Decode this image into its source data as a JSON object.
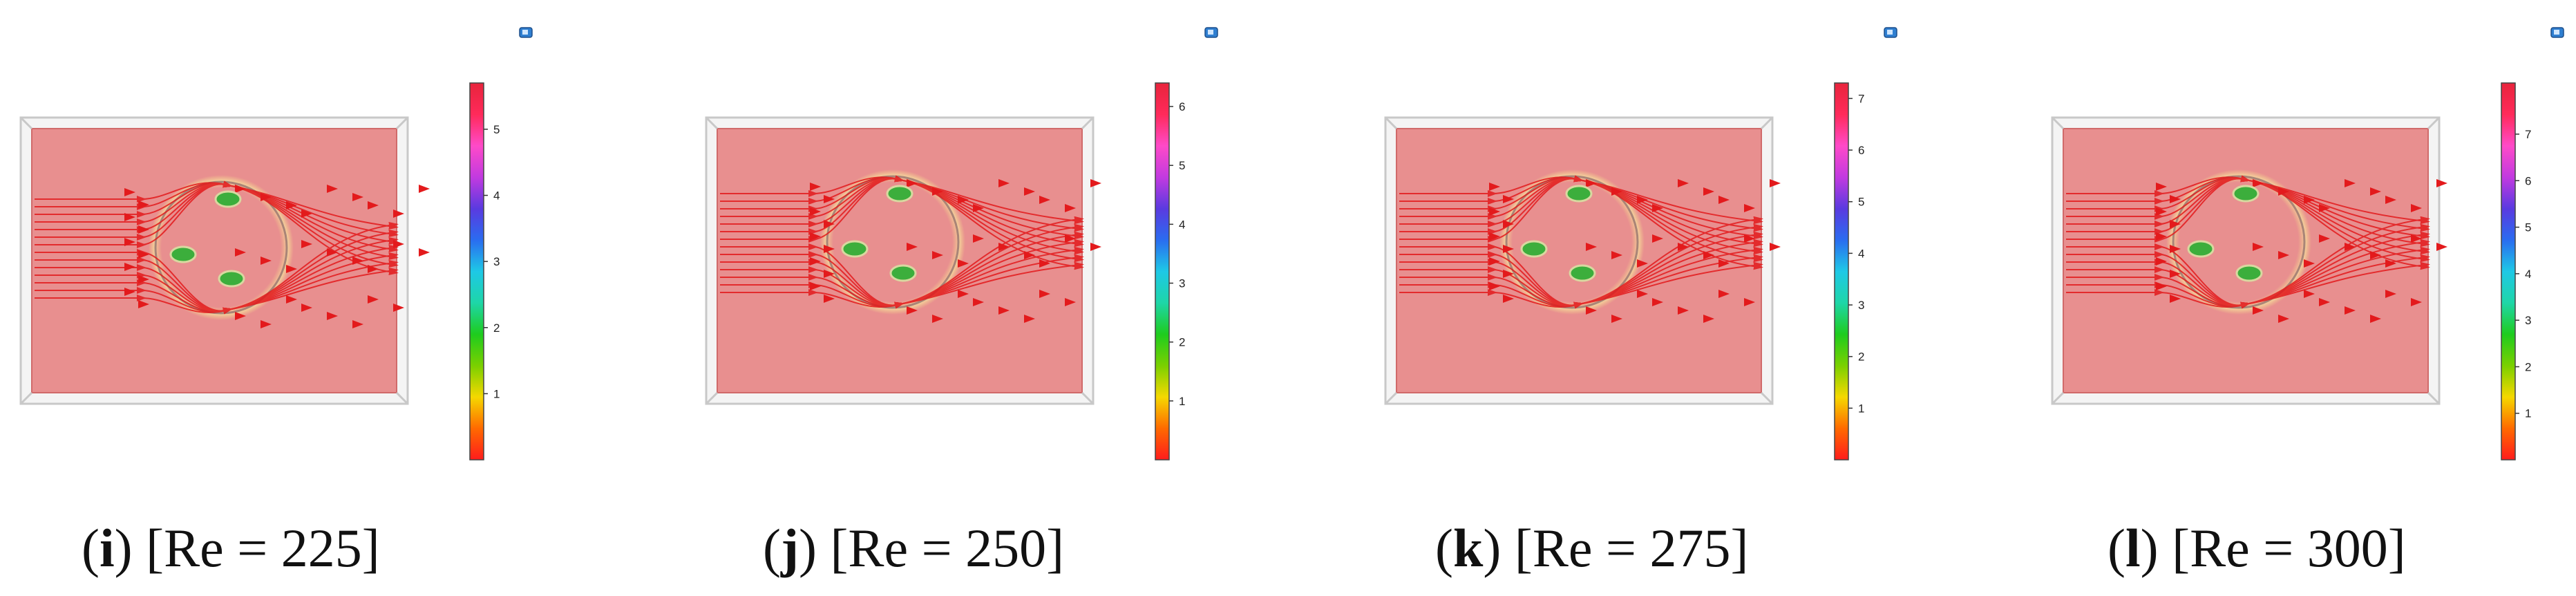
{
  "colors": {
    "domain_fill": "#e88f8f",
    "domain_edge": "#d06a6a",
    "streamline": "#e31a1c",
    "particle": "#3cae3c",
    "frame": "#c8c8c8"
  },
  "colorbar_colors": [
    "#ff1c1c",
    "#ff6a00",
    "#f5d800",
    "#7ad000",
    "#1ecc1e",
    "#1ed6a8",
    "#1ec8e6",
    "#2a6cf0",
    "#5a3ae0",
    "#c23ae0",
    "#ff4ac8",
    "#ff2a5a",
    "#e8243c"
  ],
  "icon": "camera-view-icon",
  "panels": [
    {
      "id": "i",
      "caption_letter": "i",
      "caption_text": "[Re = 225]",
      "colorbar": {
        "max": 5.7,
        "ticks": [
          "1",
          "2",
          "3",
          "4",
          "5"
        ],
        "tick_values": [
          1,
          2,
          3,
          4,
          5
        ]
      }
    },
    {
      "id": "j",
      "caption_letter": "j",
      "caption_text": "[Re = 250]",
      "colorbar": {
        "max": 6.4,
        "ticks": [
          "1",
          "2",
          "3",
          "4",
          "5",
          "6"
        ],
        "tick_values": [
          1,
          2,
          3,
          4,
          5,
          6
        ]
      }
    },
    {
      "id": "k",
      "caption_letter": "k",
      "caption_text": "[Re = 275]",
      "colorbar": {
        "max": 7.3,
        "ticks": [
          "1",
          "2",
          "3",
          "4",
          "5",
          "6",
          "7"
        ],
        "tick_values": [
          1,
          2,
          3,
          4,
          5,
          6,
          7
        ]
      }
    },
    {
      "id": "l",
      "caption_letter": "l",
      "caption_text": "[Re = 300]",
      "colorbar": {
        "max": 8.1,
        "ticks": [
          "1",
          "2",
          "3",
          "4",
          "5",
          "6",
          "7"
        ],
        "tick_values": [
          1,
          2,
          3,
          4,
          5,
          6,
          7
        ]
      }
    }
  ]
}
